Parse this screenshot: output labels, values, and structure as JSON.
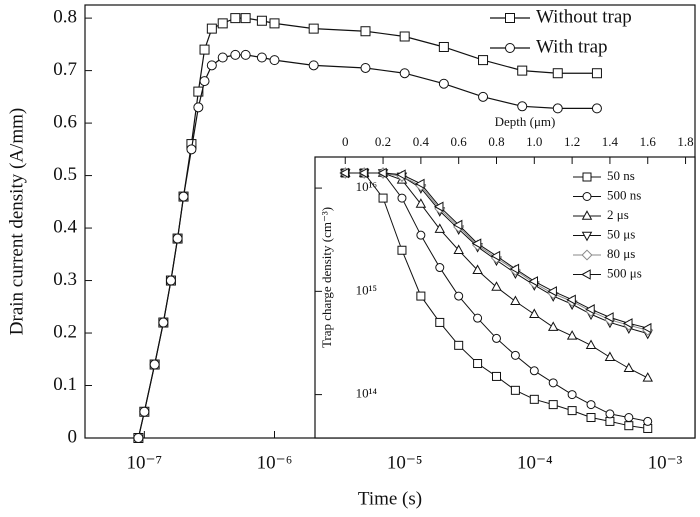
{
  "chart_data": [
    {
      "type": "line",
      "xlabel": "Time (s)",
      "ylabel": "Drain current density (A/mm)",
      "xlog": true,
      "xlim": [
        3.5e-08,
        0.0017
      ],
      "xticks": [
        {
          "value": 1e-07,
          "label": "10⁻⁷"
        },
        {
          "value": 1e-06,
          "label": "10⁻⁶"
        },
        {
          "value": 1e-05,
          "label": "10⁻⁵"
        },
        {
          "value": 0.0001,
          "label": "10⁻⁴"
        },
        {
          "value": 0.001,
          "label": "10⁻³"
        }
      ],
      "ylim": [
        0,
        0.825
      ],
      "yticks": [
        0,
        0.1,
        0.2,
        0.3,
        0.4,
        0.5,
        0.6,
        0.7,
        0.8
      ],
      "legend": "upper right",
      "series": [
        {
          "name": "Without trap",
          "color": "#111111",
          "marker": "square",
          "x": [
            9e-08,
            1e-07,
            1.2e-07,
            1.4e-07,
            1.6e-07,
            1.8e-07,
            2e-07,
            2.3e-07,
            2.6e-07,
            2.9e-07,
            3.3e-07,
            4e-07,
            5e-07,
            6e-07,
            8e-07,
            1e-06,
            2e-06,
            5e-06,
            1e-05,
            2e-05,
            4e-05,
            8e-05,
            0.00015,
            0.0003
          ],
          "values": [
            0,
            0.05,
            0.14,
            0.22,
            0.3,
            0.38,
            0.46,
            0.56,
            0.66,
            0.74,
            0.78,
            0.79,
            0.8,
            0.8,
            0.795,
            0.79,
            0.78,
            0.775,
            0.765,
            0.745,
            0.72,
            0.7,
            0.695,
            0.695
          ]
        },
        {
          "name": "With trap",
          "color": "#111111",
          "marker": "circle",
          "x": [
            9e-08,
            1e-07,
            1.2e-07,
            1.4e-07,
            1.6e-07,
            1.8e-07,
            2e-07,
            2.3e-07,
            2.6e-07,
            2.9e-07,
            3.3e-07,
            4e-07,
            5e-07,
            6e-07,
            8e-07,
            1e-06,
            2e-06,
            5e-06,
            1e-05,
            2e-05,
            4e-05,
            8e-05,
            0.00015,
            0.0003
          ],
          "values": [
            0,
            0.05,
            0.14,
            0.22,
            0.3,
            0.38,
            0.46,
            0.55,
            0.63,
            0.68,
            0.71,
            0.725,
            0.73,
            0.73,
            0.725,
            0.72,
            0.71,
            0.705,
            0.695,
            0.675,
            0.65,
            0.632,
            0.628,
            0.628
          ]
        }
      ]
    },
    {
      "type": "line",
      "xlabel": "Depth (μm)",
      "ylabel": "Trap charge density (cm⁻³)",
      "ylog": true,
      "xlim": [
        -0.16,
        1.85
      ],
      "xticks": [
        0,
        0.2,
        0.4,
        0.6,
        0.8,
        {
          "value": 1,
          "label": "1.0"
        },
        1.2,
        1.4,
        1.6,
        1.8
      ],
      "ylim": [
        38000000000000.0,
        2e+16
      ],
      "yticks": [
        {
          "value": 100000000000000.0,
          "label": "10¹⁴"
        },
        {
          "value": 1000000000000000.0,
          "label": "10¹⁵"
        },
        {
          "value": 1e+16,
          "label": "10¹⁶"
        }
      ],
      "legend": "upper right",
      "series": [
        {
          "name": "50 ns",
          "color": "#111111",
          "marker": "square",
          "x": [
            0,
            0.1,
            0.2,
            0.3,
            0.4,
            0.5,
            0.6,
            0.7,
            0.8,
            0.9,
            1,
            1.1,
            1.2,
            1.3,
            1.4,
            1.5,
            1.6
          ],
          "values": [
            1.4e+16,
            1.4e+16,
            8000000000000000.0,
            2500000000000000.0,
            900000000000000.0,
            500000000000000.0,
            300000000000000.0,
            200000000000000.0,
            150000000000000.0,
            110000000000000.0,
            90000000000000.0,
            80000000000000.0,
            70000000000000.0,
            60000000000000.0,
            55000000000000.0,
            50000000000000.0,
            47000000000000.0
          ]
        },
        {
          "name": "500 ns",
          "color": "#111111",
          "marker": "circle",
          "x": [
            0,
            0.1,
            0.2,
            0.3,
            0.4,
            0.5,
            0.6,
            0.7,
            0.8,
            0.9,
            1,
            1.1,
            1.2,
            1.3,
            1.4,
            1.5,
            1.6
          ],
          "values": [
            1.4e+16,
            1.4e+16,
            1.4e+16,
            8000000000000000.0,
            3500000000000000.0,
            1700000000000000.0,
            900000000000000.0,
            550000000000000.0,
            350000000000000.0,
            240000000000000.0,
            170000000000000.0,
            130000000000000.0,
            100000000000000.0,
            80000000000000.0,
            65000000000000.0,
            60000000000000.0,
            55000000000000.0
          ]
        },
        {
          "name": "2 μs",
          "color": "#111111",
          "marker": "triangle-up",
          "x": [
            0,
            0.1,
            0.2,
            0.3,
            0.4,
            0.5,
            0.6,
            0.7,
            0.8,
            0.9,
            1,
            1.1,
            1.2,
            1.3,
            1.4,
            1.5,
            1.6
          ],
          "values": [
            1.4e+16,
            1.4e+16,
            1.4e+16,
            1.2e+16,
            7000000000000000.0,
            4000000000000000.0,
            2500000000000000.0,
            1600000000000000.0,
            1100000000000000.0,
            800000000000000.0,
            600000000000000.0,
            450000000000000.0,
            370000000000000.0,
            300000000000000.0,
            230000000000000.0,
            180000000000000.0,
            145000000000000.0
          ]
        },
        {
          "name": "50 μs",
          "color": "#111111",
          "marker": "triangle-down",
          "x": [
            0,
            0.1,
            0.2,
            0.3,
            0.4,
            0.5,
            0.6,
            0.7,
            0.8,
            0.9,
            1,
            1.1,
            1.2,
            1.3,
            1.4,
            1.5,
            1.6
          ],
          "values": [
            1.4e+16,
            1.4e+16,
            1.4e+16,
            1.3e+16,
            1e+16,
            6000000000000000.0,
            4000000000000000.0,
            2700000000000000.0,
            2000000000000000.0,
            1500000000000000.0,
            1150000000000000.0,
            900000000000000.0,
            750000000000000.0,
            600000000000000.0,
            500000000000000.0,
            440000000000000.0,
            390000000000000.0
          ]
        },
        {
          "name": "80 μs",
          "color": "#888888",
          "marker": "diamond",
          "x": [
            0,
            0.1,
            0.2,
            0.3,
            0.4,
            0.5,
            0.6,
            0.7,
            0.8,
            0.9,
            1,
            1.1,
            1.2,
            1.3,
            1.4,
            1.5,
            1.6
          ],
          "values": [
            1.4e+16,
            1.4e+16,
            1.4e+16,
            1.3e+16,
            1.05e+16,
            6300000000000000.0,
            4200000000000000.0,
            2800000000000000.0,
            2100000000000000.0,
            1600000000000000.0,
            1200000000000000.0,
            950000000000000.0,
            800000000000000.0,
            640000000000000.0,
            530000000000000.0,
            470000000000000.0,
            420000000000000.0
          ]
        },
        {
          "name": "500 μs",
          "color": "#111111",
          "marker": "triangle-left",
          "x": [
            0,
            0.1,
            0.2,
            0.3,
            0.4,
            0.5,
            0.6,
            0.7,
            0.8,
            0.9,
            1,
            1.1,
            1.2,
            1.3,
            1.4,
            1.5,
            1.6
          ],
          "values": [
            1.4e+16,
            1.4e+16,
            1.4e+16,
            1.35e+16,
            1.1e+16,
            6600000000000000.0,
            4400000000000000.0,
            2900000000000000.0,
            2200000000000000.0,
            1650000000000000.0,
            1250000000000000.0,
            1000000000000000.0,
            830000000000000.0,
            670000000000000.0,
            560000000000000.0,
            490000000000000.0,
            440000000000000.0
          ]
        }
      ]
    }
  ]
}
